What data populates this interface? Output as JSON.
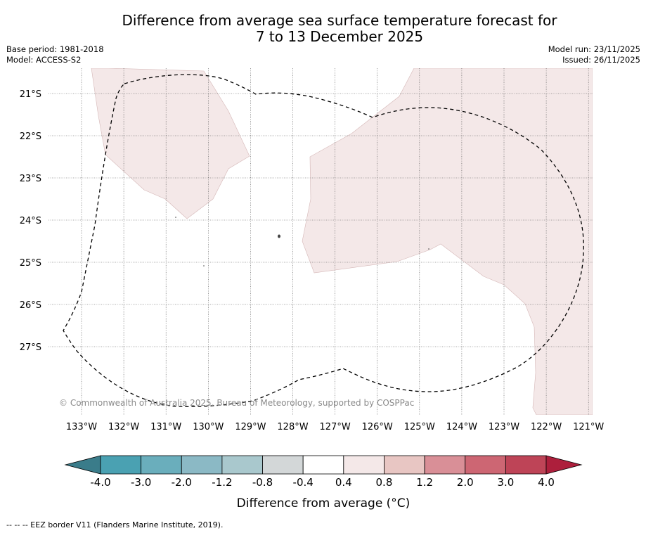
{
  "title_line1": "Difference from average sea surface temperature forecast for",
  "title_line2": "7 to 13 December 2025",
  "meta_left": {
    "base_period": "Base period: 1981-2018",
    "model": "Model: ACCESS-S2"
  },
  "meta_right": {
    "model_run": "Model run: 23/11/2025",
    "issued": "Issued: 26/11/2025"
  },
  "map": {
    "lat_labels": [
      "21°S",
      "22°S",
      "23°S",
      "24°S",
      "25°S",
      "26°S",
      "27°S"
    ],
    "lon_labels": [
      "133°W",
      "132°W",
      "131°W",
      "130°W",
      "129°W",
      "128°W",
      "127°W",
      "126°W",
      "125°W",
      "124°W",
      "123°W",
      "122°W",
      "121°W"
    ],
    "copyright": "© Commonwealth of Australia 2025, Bureau of Meteorology, supported by COSPPac",
    "anomaly_fill_color": "#f4e8e8",
    "anomaly_category": "0.4 to 0.8"
  },
  "colorbar": {
    "ticks": [
      "-4.0",
      "-3.0",
      "-2.0",
      "-1.2",
      "-0.8",
      "-0.4",
      "0.4",
      "0.8",
      "1.2",
      "2.0",
      "3.0",
      "4.0"
    ],
    "colors": [
      "#4aa1b2",
      "#6aaebc",
      "#8bb9c5",
      "#a9c8cd",
      "#d3d7d8",
      "#ffffff",
      "#f4e8e8",
      "#e8c6c3",
      "#d98f97",
      "#cd6673",
      "#be4457"
    ],
    "extend_low_color": "#3a7c8a",
    "extend_high_color": "#ad1f3c",
    "label": "Difference from average (°C)"
  },
  "footer": "--  --  -- EEZ border V11 (Flanders Marine Institute, 2019)."
}
